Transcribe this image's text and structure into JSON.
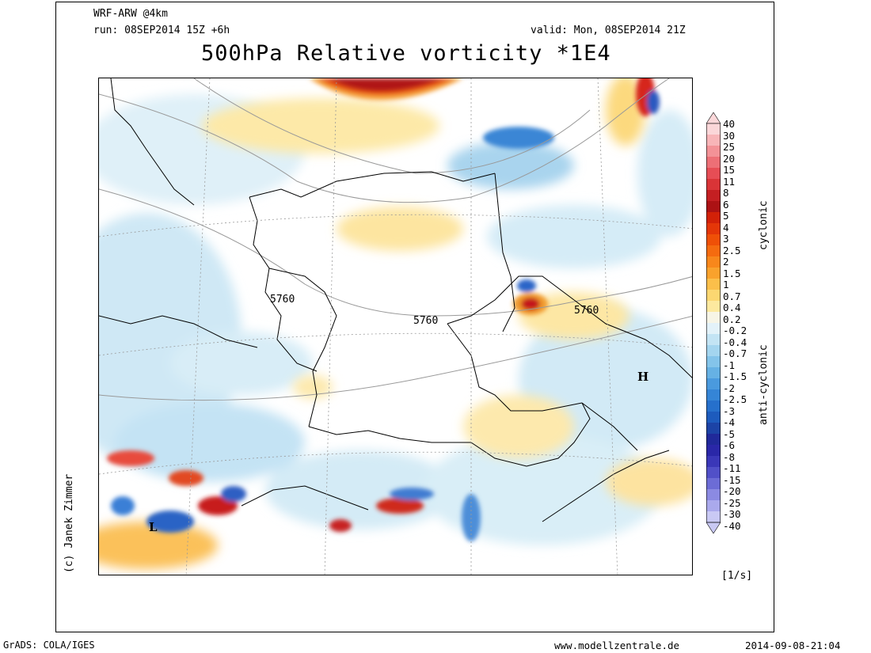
{
  "header": {
    "model": "WRF-ARW @4km",
    "run": "run: 08SEP2014 15Z +6h",
    "valid": "valid: Mon, 08SEP2014 21Z",
    "title": "500hPa Relative vorticity *1E4"
  },
  "map": {
    "contour_labels": [
      "5760",
      "5760",
      "5760"
    ],
    "pressure_centers": [
      "H",
      "L"
    ],
    "copyright": "(c) Janek Zimmer"
  },
  "legend": {
    "labels": [
      "40",
      "30",
      "25",
      "20",
      "15",
      "11",
      "8",
      "6",
      "5",
      "4",
      "3",
      "2.5",
      "2",
      "1.5",
      "1",
      "0.7",
      "0.4",
      "0.2",
      "-0.2",
      "-0.4",
      "-0.7",
      "-1",
      "-1.5",
      "-2",
      "-2.5",
      "-3",
      "-4",
      "-5",
      "-6",
      "-8",
      "-11",
      "-15",
      "-20",
      "-25",
      "-30",
      "-40"
    ],
    "colors": [
      "#fbd7d9",
      "#f8b5b8",
      "#f39297",
      "#ed6f76",
      "#e64d55",
      "#d93437",
      "#c41f22",
      "#ac1214",
      "#d22108",
      "#e43608",
      "#ef5007",
      "#f56b0f",
      "#f8871b",
      "#f9a22c",
      "#fbbf4a",
      "#fcd771",
      "#fde99f",
      "#f7f5e6",
      "#e3f2f9",
      "#c3e4f4",
      "#a4d5ef",
      "#84c4ea",
      "#66b1e4",
      "#4a9ade",
      "#3585d6",
      "#2670cc",
      "#1d5bbd",
      "#1c43a6",
      "#20299a",
      "#2a27a8",
      "#3a37b8",
      "#5150c8",
      "#6c6cd6",
      "#8b8ae2",
      "#aaa9ec",
      "#c9c9f4"
    ],
    "cyclonic_label": "cyclonic",
    "anticyclonic_label": "anti-cyclonic",
    "units": "[1/s]"
  },
  "footer": {
    "left": "GrADS: COLA/IGES",
    "center": "www.modellzentrale.de",
    "right": "2014-09-08-21:04"
  }
}
